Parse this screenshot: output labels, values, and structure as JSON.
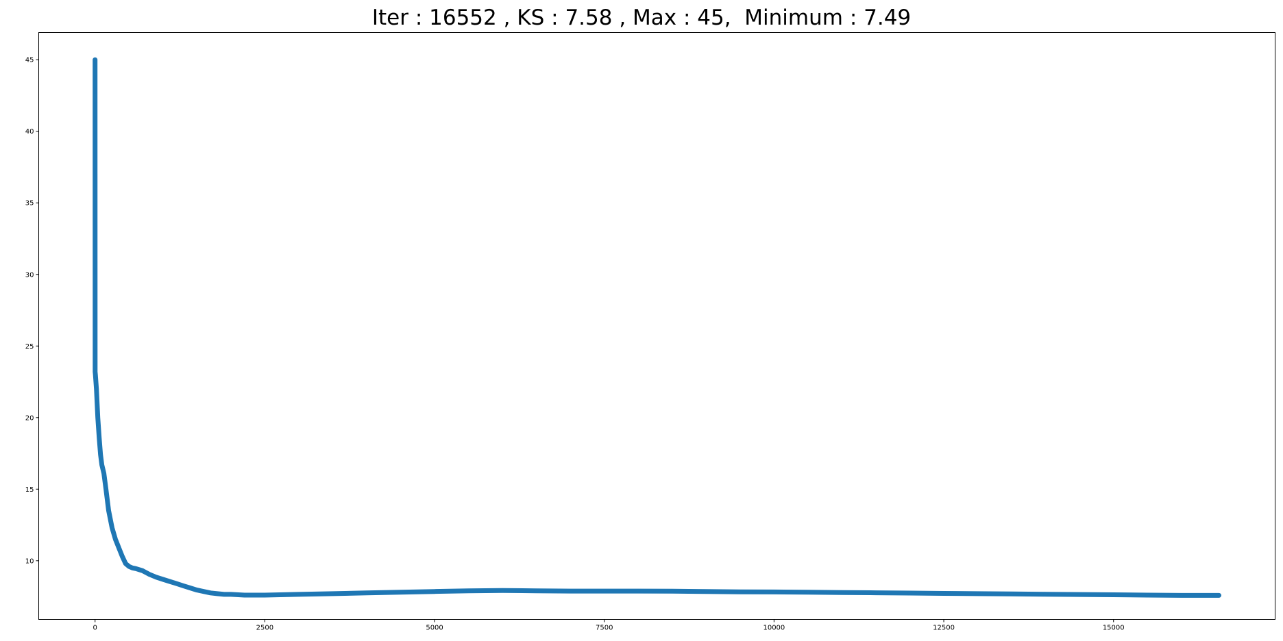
{
  "chart_data": {
    "type": "line",
    "title": "Iter : 16552 , KS : 7.58 , Max : 45,  Minimum : 7.49",
    "xlabel": "",
    "ylabel": "",
    "xlim": [
      -830,
      17380
    ],
    "ylim": [
      5.9,
      46.9
    ],
    "xticks": [
      0,
      2500,
      5000,
      7500,
      10000,
      12500,
      15000
    ],
    "xtick_labels": [
      "0",
      "2500",
      "5000",
      "7500",
      "10000",
      "12500",
      "15000"
    ],
    "yticks": [
      10,
      15,
      20,
      25,
      30,
      35,
      40,
      45
    ],
    "ytick_labels": [
      "10",
      "15",
      "20",
      "25",
      "30",
      "35",
      "40",
      "45"
    ],
    "grid": false,
    "legend": "none",
    "series": [
      {
        "color": "#1f77b4",
        "marker": "o",
        "x": [
          0,
          1,
          5,
          20,
          40,
          60,
          80,
          100,
          130,
          160,
          200,
          250,
          300,
          350,
          400,
          450,
          500,
          550,
          600,
          700,
          800,
          900,
          1000,
          1100,
          1200,
          1300,
          1400,
          1500,
          1600,
          1700,
          1800,
          1900,
          2000,
          2200,
          2500,
          3000,
          3500,
          4000,
          4500,
          5000,
          5500,
          6000,
          6500,
          7000,
          7500,
          8000,
          8500,
          9000,
          9500,
          10000,
          10500,
          11000,
          11500,
          12000,
          12500,
          13000,
          13500,
          14000,
          14500,
          15000,
          15500,
          16000,
          16300,
          16552
        ],
        "y": [
          45,
          23.2,
          23.0,
          22.0,
          20.0,
          18.6,
          17.4,
          16.7,
          16.1,
          15.0,
          13.5,
          12.3,
          11.5,
          10.9,
          10.3,
          9.8,
          9.6,
          9.5,
          9.45,
          9.3,
          9.05,
          8.85,
          8.7,
          8.55,
          8.4,
          8.25,
          8.1,
          7.95,
          7.85,
          7.75,
          7.7,
          7.65,
          7.65,
          7.6,
          7.6,
          7.65,
          7.7,
          7.75,
          7.8,
          7.85,
          7.9,
          7.92,
          7.9,
          7.88,
          7.88,
          7.88,
          7.87,
          7.85,
          7.83,
          7.82,
          7.8,
          7.78,
          7.76,
          7.74,
          7.72,
          7.7,
          7.68,
          7.66,
          7.64,
          7.62,
          7.6,
          7.58,
          7.58,
          7.58
        ]
      }
    ]
  }
}
